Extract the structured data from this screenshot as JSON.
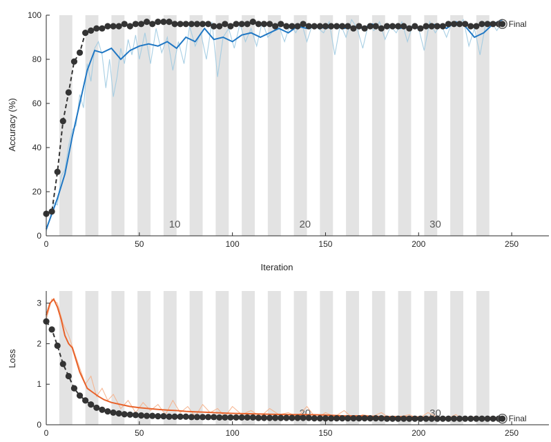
{
  "chart_data": [
    {
      "type": "line",
      "ylabel": "Accuracy (%)",
      "xlabel": "Iteration",
      "xlim": [
        0,
        270
      ],
      "ylim": [
        0,
        100
      ],
      "x_ticks": [
        "0",
        "50",
        "100",
        "150",
        "200",
        "250"
      ],
      "y_ticks": [
        "0",
        "20",
        "40",
        "60",
        "80",
        "100"
      ],
      "epoch_labels": [
        {
          "epoch": "10",
          "x": 69
        },
        {
          "epoch": "20",
          "x": 139
        },
        {
          "epoch": "30",
          "x": 209
        }
      ],
      "final_label": "Final",
      "colors": {
        "raw": "#9ecae1",
        "smoothed": "#1f77c4",
        "validation": "#333333",
        "epoch_band": "#e3e3e3"
      },
      "series": [
        {
          "role": "training-smoothed",
          "x": [
            0,
            3,
            6,
            10,
            14,
            18,
            22,
            26,
            30,
            35,
            40,
            45,
            50,
            55,
            60,
            65,
            70,
            75,
            80,
            85,
            90,
            95,
            100,
            105,
            110,
            115,
            120,
            125,
            130,
            135,
            140,
            145,
            150,
            155,
            160,
            165,
            170,
            175,
            180,
            185,
            190,
            195,
            200,
            205,
            210,
            215,
            220,
            225,
            230,
            235,
            240,
            245
          ],
          "y": [
            3,
            10,
            17,
            28,
            45,
            60,
            75,
            84,
            83,
            85,
            80,
            84,
            86,
            87,
            86,
            88,
            85,
            90,
            88,
            94,
            89,
            90,
            88,
            91,
            92,
            90,
            92,
            94,
            92,
            95,
            94,
            95,
            94,
            95,
            94,
            95,
            94,
            96,
            94,
            95,
            94,
            95,
            94,
            95,
            96,
            94,
            97,
            95,
            90,
            92,
            96,
            98
          ]
        },
        {
          "role": "training-raw",
          "x": [
            0,
            2,
            4,
            6,
            8,
            10,
            12,
            14,
            16,
            18,
            20,
            22,
            24,
            26,
            28,
            30,
            32,
            34,
            36,
            38,
            40,
            42,
            44,
            46,
            48,
            50,
            53,
            56,
            59,
            62,
            65,
            68,
            71,
            74,
            77,
            80,
            83,
            86,
            89,
            92,
            95,
            98,
            101,
            104,
            107,
            110,
            113,
            116,
            119,
            122,
            125,
            128,
            131,
            134,
            137,
            140,
            143,
            146,
            149,
            152,
            155,
            158,
            161,
            164,
            167,
            170,
            173,
            176,
            179,
            182,
            185,
            188,
            191,
            194,
            197,
            200,
            203,
            206,
            209,
            212,
            215,
            218,
            221,
            224,
            227,
            230,
            233,
            236,
            239,
            242,
            245
          ],
          "y": [
            2,
            8,
            15,
            14,
            27,
            30,
            41,
            48,
            50,
            64,
            58,
            78,
            70,
            85,
            88,
            82,
            67,
            80,
            63,
            72,
            85,
            78,
            89,
            82,
            91,
            80,
            92,
            78,
            94,
            83,
            90,
            75,
            88,
            78,
            95,
            86,
            92,
            80,
            97,
            72,
            90,
            94,
            85,
            96,
            88,
            94,
            86,
            97,
            90,
            93,
            95,
            88,
            96,
            92,
            97,
            88,
            96,
            94,
            92,
            97,
            82,
            96,
            90,
            98,
            94,
            85,
            96,
            93,
            97,
            89,
            95,
            92,
            97,
            88,
            96,
            94,
            84,
            97,
            92,
            96,
            90,
            97,
            95,
            98,
            86,
            94,
            82,
            96,
            97,
            93,
            97
          ]
        },
        {
          "role": "validation",
          "x": [
            0,
            3,
            6,
            9,
            12,
            15,
            18,
            21,
            24,
            27,
            30,
            33,
            36,
            39,
            42,
            45,
            48,
            51,
            54,
            57,
            60,
            63,
            66,
            69,
            72,
            75,
            78,
            81,
            84,
            87,
            90,
            93,
            96,
            99,
            102,
            105,
            108,
            111,
            114,
            117,
            120,
            123,
            126,
            129,
            132,
            135,
            138,
            141,
            144,
            147,
            150,
            153,
            156,
            159,
            162,
            165,
            168,
            171,
            174,
            177,
            180,
            183,
            186,
            189,
            192,
            195,
            198,
            201,
            204,
            207,
            210,
            213,
            216,
            219,
            222,
            225,
            228,
            231,
            234,
            237,
            240,
            243,
            245
          ],
          "y": [
            10,
            11,
            29,
            52,
            65,
            79,
            83,
            92,
            93,
            94,
            94,
            95,
            95,
            95,
            96,
            95,
            96,
            96,
            97,
            96,
            97,
            97,
            97,
            96,
            96,
            96,
            96,
            96,
            96,
            96,
            95,
            95,
            96,
            95,
            96,
            96,
            96,
            97,
            96,
            96,
            96,
            95,
            96,
            95,
            95,
            95,
            96,
            95,
            95,
            95,
            95,
            95,
            95,
            95,
            95,
            94,
            95,
            94,
            95,
            95,
            94,
            95,
            95,
            95,
            95,
            94,
            95,
            94,
            95,
            95,
            95,
            95,
            96,
            96,
            96,
            96,
            95,
            95,
            96,
            96,
            96,
            96,
            96
          ]
        }
      ]
    },
    {
      "type": "line",
      "ylabel": "Loss",
      "xlabel": "",
      "xlim": [
        0,
        270
      ],
      "ylim": [
        0,
        3.3
      ],
      "x_ticks": [
        "0",
        "50",
        "100",
        "150",
        "200",
        "250"
      ],
      "y_ticks": [
        "0",
        "1",
        "2",
        "3"
      ],
      "epoch_labels": [
        {
          "epoch": "20",
          "x": 139
        },
        {
          "epoch": "30",
          "x": 209
        }
      ],
      "final_label": "Final",
      "colors": {
        "raw": "#f5b08a",
        "smoothed": "#e8622a",
        "validation": "#333333",
        "epoch_band": "#e3e3e3"
      },
      "series": [
        {
          "role": "training-smoothed",
          "x": [
            0,
            2,
            4,
            6,
            8,
            10,
            12,
            14,
            16,
            18,
            20,
            22,
            25,
            28,
            31,
            35,
            40,
            45,
            50,
            55,
            60,
            65,
            70,
            75,
            80,
            85,
            90,
            95,
            100,
            110,
            120,
            130,
            140,
            150,
            160,
            170,
            180,
            190,
            200,
            210,
            220,
            230,
            240,
            245
          ],
          "y": [
            2.7,
            3.0,
            3.1,
            2.9,
            2.6,
            2.2,
            2.0,
            1.9,
            1.6,
            1.3,
            1.1,
            0.9,
            0.8,
            0.7,
            0.62,
            0.55,
            0.5,
            0.45,
            0.42,
            0.4,
            0.38,
            0.36,
            0.35,
            0.33,
            0.32,
            0.31,
            0.3,
            0.29,
            0.28,
            0.27,
            0.26,
            0.25,
            0.25,
            0.24,
            0.22,
            0.22,
            0.2,
            0.2,
            0.19,
            0.18,
            0.17,
            0.16,
            0.15,
            0.14
          ]
        },
        {
          "role": "training-raw",
          "x": [
            0,
            3,
            6,
            9,
            12,
            15,
            18,
            21,
            24,
            27,
            30,
            33,
            36,
            40,
            44,
            48,
            52,
            56,
            60,
            64,
            68,
            72,
            76,
            80,
            84,
            88,
            92,
            96,
            100,
            105,
            110,
            115,
            120,
            125,
            130,
            135,
            140,
            145,
            150,
            155,
            160,
            165,
            170,
            175,
            180,
            185,
            190,
            195,
            200,
            205,
            210,
            215,
            220,
            225,
            230,
            235,
            240,
            245
          ],
          "y": [
            2.6,
            3.1,
            3.0,
            2.5,
            2.2,
            1.8,
            1.4,
            1.0,
            1.2,
            0.7,
            0.9,
            0.6,
            0.75,
            0.4,
            0.6,
            0.3,
            0.55,
            0.35,
            0.5,
            0.25,
            0.6,
            0.3,
            0.45,
            0.2,
            0.5,
            0.3,
            0.4,
            0.2,
            0.45,
            0.25,
            0.35,
            0.2,
            0.4,
            0.25,
            0.3,
            0.2,
            0.45,
            0.15,
            0.3,
            0.2,
            0.35,
            0.15,
            0.25,
            0.2,
            0.3,
            0.15,
            0.2,
            0.25,
            0.15,
            0.3,
            0.2,
            0.15,
            0.25,
            0.1,
            0.2,
            0.15,
            0.2,
            0.12
          ]
        },
        {
          "role": "validation",
          "x": [
            0,
            3,
            6,
            9,
            12,
            15,
            18,
            21,
            24,
            27,
            30,
            33,
            36,
            39,
            42,
            45,
            48,
            51,
            54,
            57,
            60,
            63,
            66,
            69,
            72,
            75,
            78,
            81,
            84,
            87,
            90,
            93,
            96,
            99,
            102,
            105,
            108,
            111,
            114,
            117,
            120,
            123,
            126,
            129,
            132,
            135,
            138,
            141,
            144,
            147,
            150,
            153,
            156,
            159,
            162,
            165,
            168,
            171,
            174,
            177,
            180,
            183,
            186,
            189,
            192,
            195,
            198,
            201,
            204,
            207,
            210,
            213,
            216,
            219,
            222,
            225,
            228,
            231,
            234,
            237,
            240,
            243,
            245
          ],
          "y": [
            2.55,
            2.35,
            1.95,
            1.5,
            1.2,
            0.9,
            0.72,
            0.6,
            0.5,
            0.42,
            0.37,
            0.33,
            0.3,
            0.28,
            0.26,
            0.25,
            0.24,
            0.23,
            0.22,
            0.22,
            0.21,
            0.21,
            0.2,
            0.2,
            0.2,
            0.2,
            0.19,
            0.19,
            0.19,
            0.19,
            0.19,
            0.18,
            0.18,
            0.18,
            0.18,
            0.18,
            0.18,
            0.18,
            0.17,
            0.17,
            0.17,
            0.17,
            0.17,
            0.17,
            0.17,
            0.17,
            0.17,
            0.17,
            0.16,
            0.16,
            0.16,
            0.16,
            0.16,
            0.16,
            0.16,
            0.16,
            0.16,
            0.16,
            0.16,
            0.16,
            0.16,
            0.15,
            0.15,
            0.15,
            0.15,
            0.15,
            0.15,
            0.15,
            0.15,
            0.15,
            0.15,
            0.15,
            0.15,
            0.15,
            0.15,
            0.15,
            0.15,
            0.15,
            0.15,
            0.15,
            0.15,
            0.15,
            0.15
          ]
        }
      ]
    }
  ]
}
